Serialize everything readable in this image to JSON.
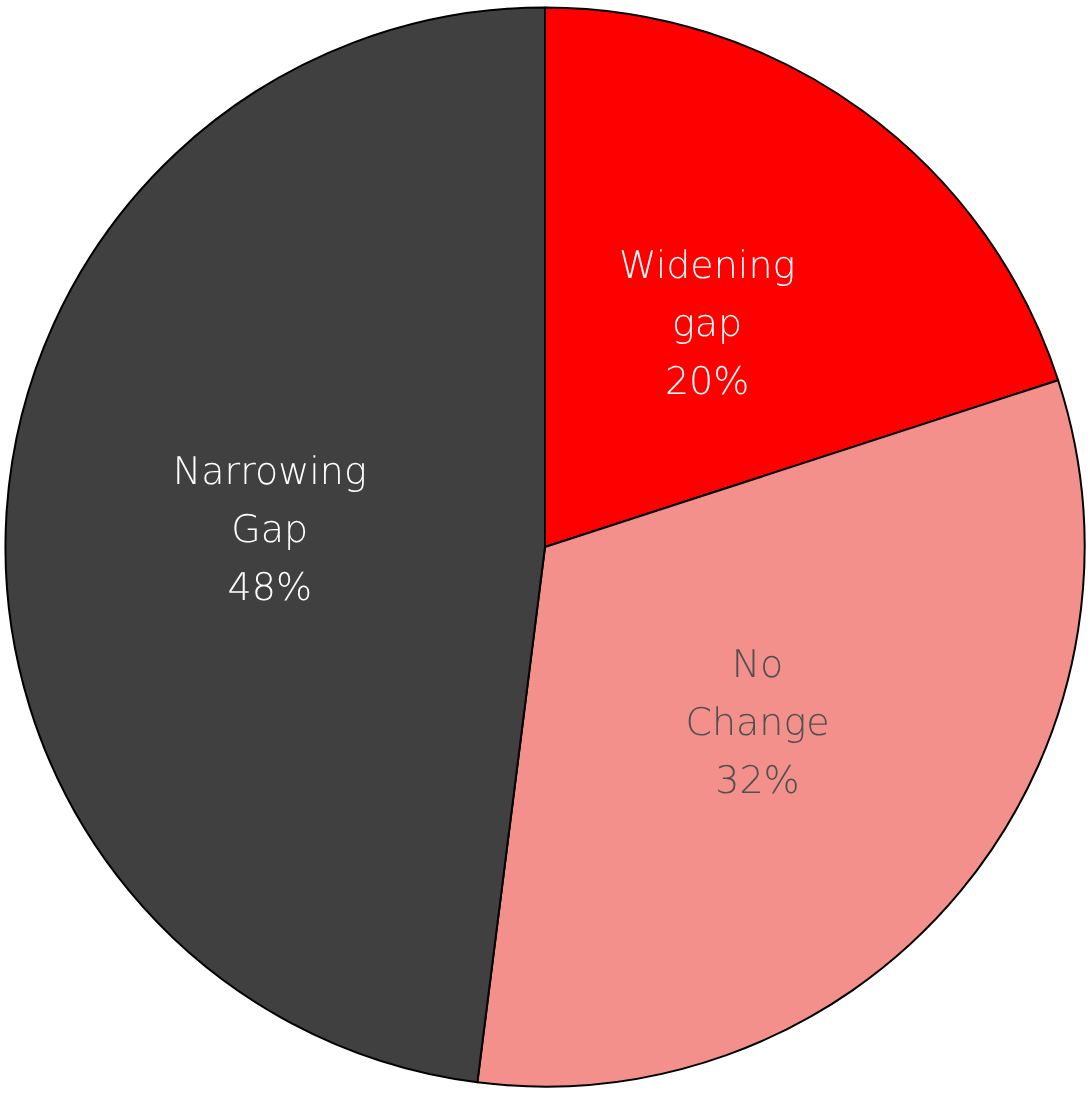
{
  "chart_data": {
    "type": "pie",
    "categories": [
      "Widening gap",
      "No Change",
      "Narrowing Gap"
    ],
    "values": [
      20,
      32,
      48
    ],
    "value_labels": [
      "20%",
      "32%",
      "48%"
    ],
    "colors": [
      "#ff0000",
      "#f4908c",
      "#404040"
    ],
    "legend": false
  }
}
